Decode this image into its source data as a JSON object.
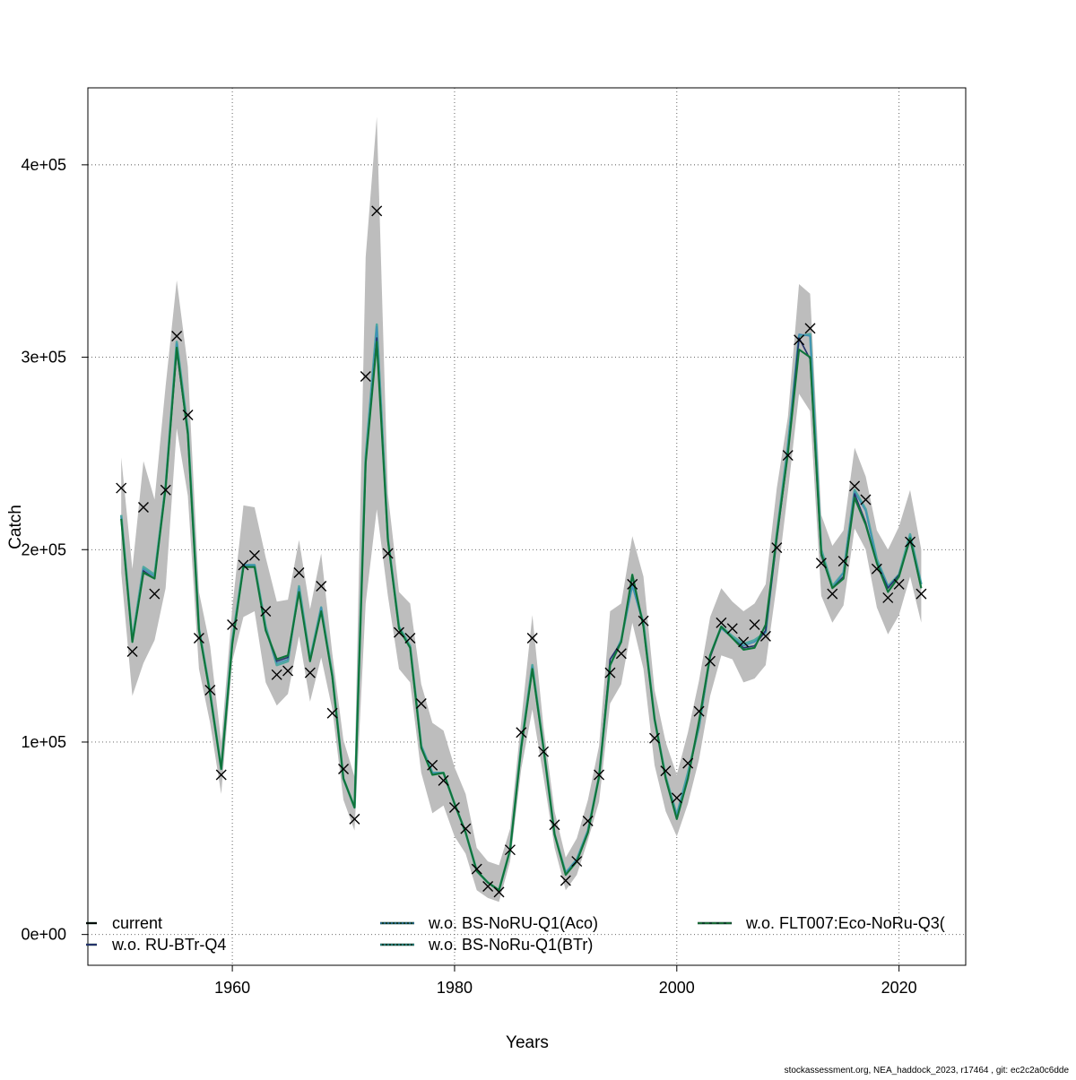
{
  "chart_data": {
    "type": "line",
    "title": "",
    "xlabel": "Years",
    "ylabel": "Catch",
    "xlim": [
      1947,
      2026
    ],
    "ylim": [
      -16000,
      440000
    ],
    "x_ticks": [
      1960,
      1980,
      2000,
      2020
    ],
    "y_ticks": [
      0,
      100000,
      200000,
      300000,
      400000
    ],
    "y_tick_labels": [
      "0e+00",
      "1e+05",
      "2e+05",
      "3e+05",
      "4e+05"
    ],
    "grid": true,
    "legend_position": "bottom",
    "footer": "stockassessment.org, NEA_haddock_2023, r17464 , git: ec2c2a0c6dde",
    "legend": [
      {
        "label": "current",
        "color": "#000000",
        "dash": "solid"
      },
      {
        "label": "w.o. RU-BTr-Q4",
        "color": "#2b2f7a",
        "dash": "solid"
      },
      {
        "label": "w.o. BS-NoRU-Q1(Aco)",
        "color": "#2d6f9e",
        "dash": "dotted"
      },
      {
        "label": "w.o. BS-NoRu-Q1(BTr)",
        "color": "#2a8c8c",
        "dash": "dotted"
      },
      {
        "label": "w.o. FLT007:Eco-NoRu-Q3(",
        "color": "#1e7a3a",
        "dash": "dashed"
      }
    ],
    "years": [
      1950,
      1951,
      1952,
      1953,
      1954,
      1955,
      1956,
      1957,
      1958,
      1959,
      1960,
      1961,
      1962,
      1963,
      1964,
      1965,
      1966,
      1967,
      1968,
      1969,
      1970,
      1971,
      1972,
      1973,
      1974,
      1975,
      1976,
      1977,
      1978,
      1979,
      1980,
      1981,
      1982,
      1983,
      1984,
      1985,
      1986,
      1987,
      1988,
      1989,
      1990,
      1991,
      1992,
      1993,
      1994,
      1995,
      1996,
      1997,
      1998,
      1999,
      2000,
      2001,
      2002,
      2003,
      2004,
      2005,
      2006,
      2007,
      2008,
      2009,
      2010,
      2011,
      2012,
      2013,
      2014,
      2015,
      2016,
      2017,
      2018,
      2019,
      2020,
      2021,
      2022
    ],
    "observed": [
      232000,
      147000,
      222000,
      177000,
      231000,
      311000,
      270000,
      154000,
      127000,
      83000,
      161000,
      192000,
      197000,
      168000,
      135000,
      137000,
      188000,
      136000,
      181000,
      115000,
      86000,
      60000,
      290000,
      376000,
      198000,
      157000,
      154000,
      120000,
      88000,
      80000,
      66000,
      55000,
      34000,
      25000,
      22000,
      44000,
      105000,
      154000,
      95000,
      57000,
      28000,
      38000,
      59000,
      83000,
      136000,
      146000,
      182000,
      163000,
      102000,
      85000,
      71000,
      89000,
      116000,
      142000,
      162000,
      159000,
      152000,
      161000,
      155000,
      201000,
      249000,
      309000,
      315000,
      193000,
      177000,
      194000,
      233000,
      226000,
      190000,
      175000,
      182000,
      204000,
      177000
    ],
    "ci_upper": [
      248000,
      190000,
      246000,
      226000,
      285000,
      340000,
      295000,
      178000,
      150000,
      100000,
      170000,
      223000,
      222000,
      196000,
      173000,
      174000,
      205000,
      169000,
      198000,
      146000,
      101000,
      82000,
      352000,
      425000,
      229000,
      178000,
      172000,
      130000,
      110000,
      106000,
      87000,
      73000,
      45000,
      38000,
      36000,
      55000,
      111000,
      166000,
      108000,
      64000,
      40000,
      50000,
      70000,
      98000,
      168000,
      172000,
      207000,
      186000,
      127000,
      100000,
      83000,
      105000,
      132000,
      165000,
      180000,
      173000,
      168000,
      172000,
      182000,
      232000,
      269000,
      338000,
      333000,
      218000,
      202000,
      210000,
      253000,
      238000,
      210000,
      200000,
      212000,
      231000,
      200000
    ],
    "ci_lower": [
      188000,
      124000,
      141000,
      153000,
      180000,
      263000,
      228000,
      138000,
      110000,
      73000,
      142000,
      165000,
      168000,
      131000,
      119000,
      125000,
      155000,
      121000,
      144000,
      117000,
      70000,
      54000,
      172000,
      221000,
      176000,
      138000,
      131000,
      84000,
      63000,
      67000,
      51000,
      42000,
      23000,
      19000,
      17000,
      38000,
      86000,
      117000,
      82000,
      45000,
      23000,
      31000,
      49000,
      69000,
      120000,
      130000,
      162000,
      138000,
      88000,
      64000,
      51000,
      68000,
      91000,
      124000,
      145000,
      143000,
      131000,
      133000,
      140000,
      182000,
      230000,
      281000,
      272000,
      176000,
      162000,
      171000,
      211000,
      200000,
      170000,
      156000,
      166000,
      186000,
      162000
    ],
    "series": [
      {
        "name": "current",
        "color": "#0f8a46",
        "width": 2.2,
        "values": [
          216000,
          152000,
          188000,
          185000,
          232000,
          305000,
          260000,
          158000,
          125000,
          86000,
          151000,
          191000,
          191000,
          158000,
          143000,
          145000,
          178000,
          142000,
          168000,
          134000,
          81000,
          66000,
          245000,
          308000,
          205000,
          159000,
          149000,
          97000,
          83000,
          84000,
          68000,
          53000,
          33000,
          27000,
          23000,
          44000,
          97000,
          138000,
          97000,
          52000,
          31000,
          38000,
          53000,
          82000,
          140000,
          152000,
          187000,
          160000,
          112000,
          81000,
          60000,
          81000,
          111000,
          145000,
          160000,
          154000,
          148000,
          149000,
          161000,
          207000,
          250000,
          304000,
          300000,
          198000,
          180000,
          185000,
          227000,
          213000,
          193000,
          178000,
          186000,
          206000,
          180000
        ]
      },
      {
        "name": "w.o. RU-BTr-Q4",
        "color": "#24306b",
        "width": 1.6,
        "values": [
          216000,
          152000,
          189000,
          185000,
          233000,
          303000,
          260000,
          158000,
          125000,
          86000,
          151000,
          191000,
          191000,
          158000,
          142000,
          144000,
          178000,
          142000,
          168000,
          134000,
          81000,
          66000,
          245000,
          310000,
          205000,
          159000,
          149000,
          97000,
          83000,
          84000,
          68000,
          53000,
          33000,
          27000,
          23000,
          44000,
          97000,
          138000,
          97000,
          52000,
          31000,
          38000,
          53000,
          82000,
          143000,
          152000,
          186000,
          160000,
          112000,
          81000,
          60000,
          81000,
          110000,
          144000,
          160000,
          154000,
          149000,
          150000,
          158000,
          205000,
          250000,
          310000,
          299000,
          197000,
          180000,
          186000,
          229000,
          214000,
          193000,
          180000,
          187000,
          205000,
          180000
        ]
      },
      {
        "name": "w.o. BS-NoRU-Q1(Aco)",
        "color": "#3f8fb8",
        "width": 1.4,
        "values": [
          217000,
          153000,
          190000,
          186000,
          233000,
          307000,
          261000,
          159000,
          125000,
          86000,
          152000,
          192000,
          192000,
          159000,
          141000,
          143000,
          180000,
          143000,
          170000,
          134000,
          81000,
          66000,
          247000,
          316000,
          205000,
          159000,
          149000,
          98000,
          84000,
          84000,
          68000,
          53000,
          33000,
          27000,
          23000,
          44000,
          97000,
          139000,
          97000,
          52000,
          32000,
          39000,
          54000,
          82000,
          140000,
          153000,
          181000,
          161000,
          112000,
          81000,
          62000,
          83000,
          109000,
          145000,
          159000,
          154000,
          150000,
          152000,
          157000,
          207000,
          253000,
          312000,
          311000,
          199000,
          180000,
          188000,
          230000,
          220000,
          194000,
          181000,
          186000,
          207000,
          182000
        ]
      },
      {
        "name": "w.o. BS-NoRu-Q1(BTr)",
        "color": "#4fa8a0",
        "width": 2.6,
        "values": [
          218000,
          153000,
          191000,
          187000,
          233000,
          308000,
          262000,
          159000,
          126000,
          86000,
          153000,
          192000,
          192000,
          160000,
          140000,
          142000,
          181000,
          143000,
          170000,
          135000,
          81000,
          66000,
          248000,
          317000,
          206000,
          160000,
          150000,
          98000,
          84000,
          84000,
          68000,
          53000,
          33000,
          27000,
          23000,
          44000,
          98000,
          140000,
          97000,
          52000,
          32000,
          39000,
          54000,
          82000,
          140000,
          153000,
          182000,
          162000,
          112000,
          82000,
          62000,
          84000,
          108000,
          145000,
          160000,
          155000,
          151000,
          153000,
          157000,
          208000,
          254000,
          311000,
          312000,
          200000,
          181000,
          188000,
          231000,
          221000,
          195000,
          181000,
          187000,
          208000,
          182000
        ]
      },
      {
        "name": "w.o. FLT007:Eco-NoRu-Q3(",
        "color": "#11703a",
        "width": 1.5,
        "values": [
          216000,
          152000,
          188000,
          185000,
          232000,
          305000,
          260000,
          158000,
          125000,
          86000,
          151000,
          191000,
          191000,
          158000,
          143000,
          145000,
          178000,
          142000,
          168000,
          134000,
          81000,
          66000,
          245000,
          308000,
          205000,
          159000,
          149000,
          97000,
          83000,
          84000,
          68000,
          53000,
          33000,
          27000,
          23000,
          44000,
          97000,
          138000,
          97000,
          52000,
          31000,
          38000,
          53000,
          82000,
          140000,
          152000,
          187000,
          160000,
          112000,
          81000,
          60000,
          81000,
          111000,
          145000,
          160000,
          154000,
          148000,
          149000,
          161000,
          207000,
          250000,
          304000,
          300000,
          198000,
          180000,
          185000,
          227000,
          213000,
          193000,
          178000,
          186000,
          206000,
          180000
        ]
      }
    ]
  }
}
